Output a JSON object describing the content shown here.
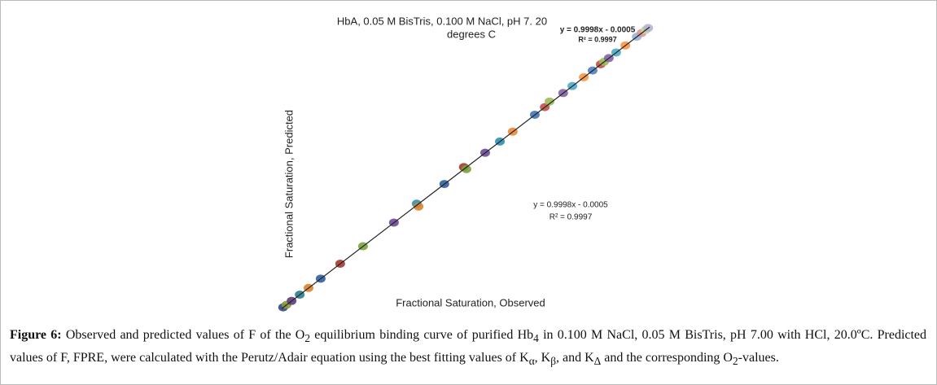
{
  "chart_data": {
    "type": "scatter",
    "title": "HbA, 0.05 M BisTris, 0.100 M NaCl, pH 7. 20",
    "subtitle": "degrees C",
    "x_label": "Fractional Saturation, Observed",
    "y_label": "Fractional Saturation, Predicted",
    "annotations": [
      "y = 0.9998x - 0.0005",
      "R² = 0.9997",
      "y = 0.9998x - 0.0005",
      "R² = 0.9997"
    ],
    "xlim": [
      0,
      1
    ],
    "ylim": [
      0,
      1
    ],
    "trendline": {
      "slope": 0.9998,
      "intercept": -0.0005,
      "color": "#222222"
    },
    "x": [
      0.004,
      0.013,
      0.027,
      0.049,
      0.073,
      0.106,
      0.159,
      0.221,
      0.305,
      0.367,
      0.372,
      0.442,
      0.495,
      0.502,
      0.553,
      0.593,
      0.628,
      0.688,
      0.715,
      0.728,
      0.765,
      0.79,
      0.821,
      0.845,
      0.867,
      0.876,
      0.889,
      0.909,
      0.934,
      0.965,
      0.978,
      0.989,
      0.996
    ],
    "values": [
      0.004,
      0.013,
      0.027,
      0.049,
      0.073,
      0.106,
      0.159,
      0.221,
      0.305,
      0.372,
      0.362,
      0.442,
      0.502,
      0.495,
      0.553,
      0.593,
      0.628,
      0.688,
      0.715,
      0.735,
      0.765,
      0.79,
      0.821,
      0.845,
      0.867,
      0.876,
      0.889,
      0.909,
      0.934,
      0.965,
      0.978,
      0.989,
      0.996
    ],
    "colors": [
      "#2f4b7c",
      "#8a9a3a",
      "#5b3c7a",
      "#2a7d8c",
      "#d9822b",
      "#2f5f9e",
      "#a23a2e",
      "#7aa33a",
      "#6a4a9a",
      "#2f8fb0",
      "#d9822b",
      "#2f5f9e",
      "#a23a2e",
      "#7aa33a",
      "#6a4a9a",
      "#2f8fb0",
      "#e8893a",
      "#3f75b5",
      "#c0504d",
      "#9bbb59",
      "#8064a2",
      "#4bacc6",
      "#f79646",
      "#4f81bd",
      "#c0504d",
      "#9bbb59",
      "#8064a2",
      "#4bacc6",
      "#f79646",
      "#95b3d7",
      "#d99694",
      "#c3d69b",
      "#b3b3d0"
    ]
  },
  "caption": [
    {
      "text": "Figure 6:",
      "bold": true
    },
    {
      "text": " Observed and predicted values of F of the O"
    },
    {
      "text": "2",
      "sub": true
    },
    {
      "text": " equilibrium binding curve of purified Hb"
    },
    {
      "text": "4",
      "sub": true
    },
    {
      "text": " in 0.100 M NaCl, 0.05 M BisTris, pH 7.00 with HCl, 20.0ºC. Predicted values of F, FPRE, were calculated with the Perutz/Adair equation using the best fitting values of K"
    },
    {
      "text": "α",
      "sub": true
    },
    {
      "text": ", K"
    },
    {
      "text": "β",
      "sub": true
    },
    {
      "text": ", and K"
    },
    {
      "text": "Δ",
      "sub": true
    },
    {
      "text": " and the corresponding O"
    },
    {
      "text": "2",
      "sub": true
    },
    {
      "text": "-values."
    }
  ]
}
